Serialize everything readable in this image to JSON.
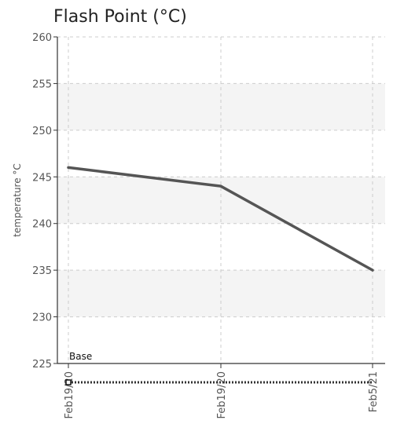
{
  "chart_data": {
    "type": "line",
    "title": "Flash Point (°C)",
    "ylabel": "temperature °C",
    "xlabel": "",
    "categories": [
      "Feb19/20",
      "Feb19/20",
      "Feb5/21"
    ],
    "ylim": [
      225,
      260
    ],
    "yticks": [
      225,
      230,
      235,
      240,
      245,
      250,
      255,
      260
    ],
    "grid": true,
    "series": [
      {
        "values": [
          246,
          244,
          235
        ],
        "color": "#555555"
      }
    ],
    "baseline": {
      "label": "Base",
      "color": "#333333"
    }
  }
}
